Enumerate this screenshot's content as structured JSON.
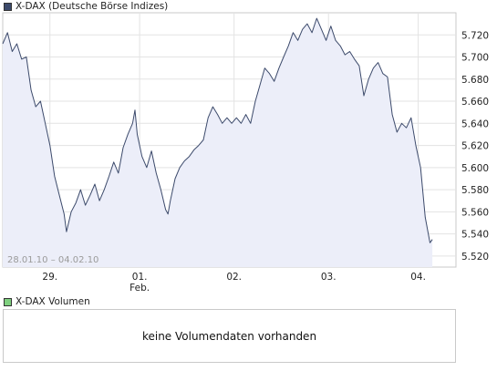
{
  "price_legend": {
    "label": "X-DAX (Deutsche Börse Indizes)",
    "color": "#3c4a6b"
  },
  "volume_legend": {
    "label": "X-DAX Volumen",
    "color": "#7fd07f"
  },
  "volume_panel": {
    "message": "keine Volumendaten vorhanden"
  },
  "chart_data": {
    "type": "area",
    "title": "X-DAX (Deutsche Börse Indizes)",
    "date_range_label": "28.01.10 – 04.02.10",
    "xlabel": "",
    "ylabel": "",
    "ylim": [
      5510,
      5740
    ],
    "grid": true,
    "x_ticks": [
      "29.",
      "01.",
      "02.",
      "03.",
      "04."
    ],
    "x_tick_sublabels": [
      "",
      "Feb.",
      "",
      "",
      ""
    ],
    "y_ticks": [
      "5.720",
      "5.700",
      "5.680",
      "5.660",
      "5.640",
      "5.620",
      "5.600",
      "5.580",
      "5.560",
      "5.540",
      "5.520"
    ],
    "y_tick_values": [
      5720,
      5700,
      5680,
      5660,
      5640,
      5620,
      5600,
      5580,
      5560,
      5540,
      5520
    ],
    "line_color": "#3c4a6b",
    "fill_color": "#eceef9",
    "series": [
      {
        "values": [
          [
            0,
            5712
          ],
          [
            0.1,
            5722
          ],
          [
            0.2,
            5705
          ],
          [
            0.3,
            5712
          ],
          [
            0.4,
            5698
          ],
          [
            0.5,
            5700
          ],
          [
            0.6,
            5670
          ],
          [
            0.7,
            5655
          ],
          [
            0.8,
            5660
          ],
          [
            0.9,
            5640
          ],
          [
            1.0,
            5620
          ],
          [
            1.1,
            5592
          ],
          [
            1.2,
            5575
          ],
          [
            1.3,
            5558
          ],
          [
            1.35,
            5542
          ],
          [
            1.45,
            5560
          ],
          [
            1.55,
            5568
          ],
          [
            1.65,
            5580
          ],
          [
            1.75,
            5566
          ],
          [
            1.85,
            5575
          ],
          [
            1.95,
            5585
          ],
          [
            2.05,
            5570
          ],
          [
            2.15,
            5580
          ],
          [
            2.25,
            5592
          ],
          [
            2.35,
            5605
          ],
          [
            2.45,
            5595
          ],
          [
            2.55,
            5618
          ],
          [
            2.65,
            5630
          ],
          [
            2.75,
            5640
          ],
          [
            2.8,
            5652
          ],
          [
            2.85,
            5630
          ],
          [
            2.95,
            5610
          ],
          [
            3.05,
            5600
          ],
          [
            3.15,
            5615
          ],
          [
            3.25,
            5595
          ],
          [
            3.35,
            5580
          ],
          [
            3.45,
            5562
          ],
          [
            3.5,
            5558
          ],
          [
            3.55,
            5570
          ],
          [
            3.65,
            5590
          ],
          [
            3.75,
            5600
          ],
          [
            3.85,
            5606
          ],
          [
            3.95,
            5610
          ],
          [
            4.05,
            5616
          ],
          [
            4.15,
            5620
          ],
          [
            4.25,
            5625
          ],
          [
            4.35,
            5645
          ],
          [
            4.45,
            5655
          ],
          [
            4.55,
            5648
          ],
          [
            4.65,
            5640
          ],
          [
            4.75,
            5645
          ],
          [
            4.85,
            5640
          ],
          [
            4.95,
            5645
          ],
          [
            5.05,
            5640
          ],
          [
            5.15,
            5648
          ],
          [
            5.25,
            5640
          ],
          [
            5.35,
            5660
          ],
          [
            5.45,
            5675
          ],
          [
            5.55,
            5690
          ],
          [
            5.65,
            5685
          ],
          [
            5.75,
            5678
          ],
          [
            5.85,
            5690
          ],
          [
            5.95,
            5700
          ],
          [
            6.05,
            5710
          ],
          [
            6.15,
            5722
          ],
          [
            6.25,
            5715
          ],
          [
            6.35,
            5725
          ],
          [
            6.45,
            5730
          ],
          [
            6.55,
            5722
          ],
          [
            6.65,
            5735
          ],
          [
            6.75,
            5725
          ],
          [
            6.85,
            5715
          ],
          [
            6.95,
            5728
          ],
          [
            7.05,
            5715
          ],
          [
            7.15,
            5710
          ],
          [
            7.25,
            5702
          ],
          [
            7.35,
            5705
          ],
          [
            7.45,
            5698
          ],
          [
            7.55,
            5692
          ],
          [
            7.65,
            5665
          ],
          [
            7.75,
            5680
          ],
          [
            7.85,
            5690
          ],
          [
            7.95,
            5695
          ],
          [
            8.05,
            5685
          ],
          [
            8.15,
            5682
          ],
          [
            8.25,
            5648
          ],
          [
            8.35,
            5632
          ],
          [
            8.45,
            5640
          ],
          [
            8.55,
            5636
          ],
          [
            8.65,
            5645
          ],
          [
            8.75,
            5620
          ],
          [
            8.85,
            5600
          ],
          [
            8.95,
            5555
          ],
          [
            9.05,
            5532
          ],
          [
            9.1,
            5535
          ]
        ]
      }
    ]
  }
}
